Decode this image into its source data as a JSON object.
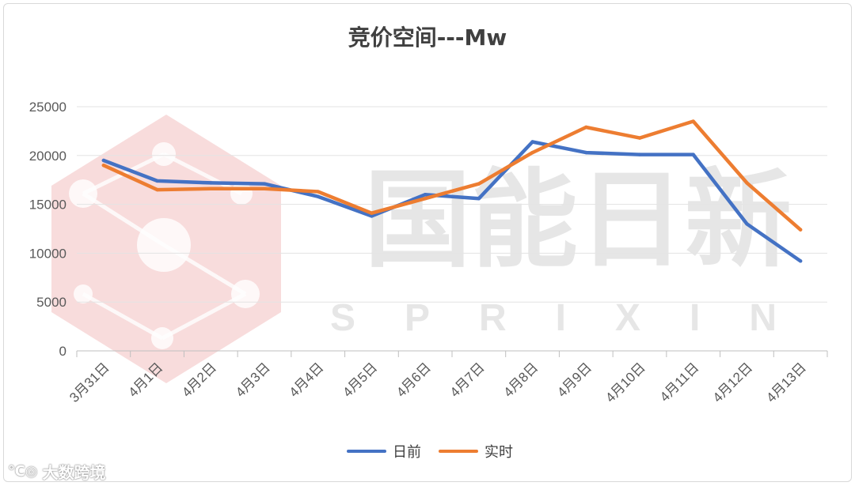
{
  "chart_data": {
    "type": "line",
    "title": "竞价空间---Mw",
    "categories": [
      "3月31日",
      "4月1日",
      "4月2日",
      "4月3日",
      "4月4日",
      "4月5日",
      "4月6日",
      "4月7日",
      "4月8日",
      "4月9日",
      "4月10日",
      "4月11日",
      "4月12日",
      "4月13日"
    ],
    "ylim": [
      0,
      25000
    ],
    "yticks": [
      0,
      5000,
      10000,
      15000,
      20000,
      25000
    ],
    "grid": true,
    "legend_position": "bottom",
    "series": [
      {
        "name": "日前",
        "color": "#4472C4",
        "values": [
          19500,
          17400,
          17200,
          17100,
          15800,
          13800,
          16000,
          15600,
          21400,
          20300,
          20100,
          20100,
          13000,
          9200
        ]
      },
      {
        "name": "实时",
        "color": "#ED7D31",
        "values": [
          19000,
          16500,
          16600,
          16600,
          16300,
          14100,
          15600,
          17100,
          20300,
          22900,
          21800,
          23500,
          17200,
          12400
        ]
      }
    ]
  },
  "watermark": {
    "text": "国能日新",
    "subtext": "SPRIXIN"
  },
  "footer": {
    "logo_text": "大数跨境"
  }
}
